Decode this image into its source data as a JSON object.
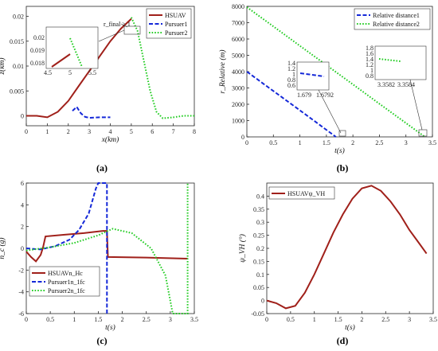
{
  "colors": {
    "hsuav": "#a0201a",
    "p1": "#1428d8",
    "p2": "#22cc22",
    "ax": "#262626"
  },
  "panels": [
    {
      "caption": "(a)",
      "xlabel": "x(km)",
      "ylabel": "z(km)",
      "legend": [
        "HSUAV",
        "Pursuer1",
        "Pursuer2"
      ],
      "annotation": "r_final > 1",
      "xticks": [
        "0",
        "1",
        "2",
        "3",
        "4",
        "5",
        "6",
        "7",
        "8"
      ],
      "yticks": [
        "0",
        "0.005",
        "0.01",
        "0.015",
        "0.02"
      ],
      "inset_xticks": [
        "4.5",
        "5",
        "5.5"
      ],
      "inset_yticks": [
        "0.018",
        "0.019",
        "0.02"
      ]
    },
    {
      "caption": "(b)",
      "xlabel": "t(s)",
      "ylabel": "r_Relative (m)",
      "legend": [
        "Relative distance1",
        "Relative distance2"
      ],
      "xticks": [
        "0",
        "0.5",
        "1",
        "1.5",
        "2",
        "2.5",
        "3",
        "3.5"
      ],
      "yticks": [
        "0",
        "1000",
        "2000",
        "3000",
        "4000",
        "5000",
        "6000",
        "7000",
        "8000"
      ],
      "inset1_xticks": [
        "1.679",
        "1.6792"
      ],
      "inset1_yticks": [
        "0.6",
        "0.8",
        "1",
        "1.2",
        "1.4"
      ],
      "inset2_xticks": [
        "3.3582",
        "3.3584"
      ],
      "inset2_yticks": [
        "0.8",
        "1",
        "1.2",
        "1.4",
        "1.6",
        "1.8"
      ]
    },
    {
      "caption": "(c)",
      "xlabel": "t(s)",
      "ylabel": "n_c (g)",
      "legend": [
        "HSUAVn_Hc",
        "Pursuer1n_1fc",
        "Pursuer2n_1fc"
      ],
      "xticks": [
        "0",
        "0.5",
        "1",
        "1.5",
        "2",
        "2.5",
        "3",
        "3.5"
      ],
      "yticks": [
        "-6",
        "-4",
        "-2",
        "0",
        "2",
        "4",
        "6"
      ]
    },
    {
      "caption": "(d)",
      "xlabel": "t(s)",
      "ylabel": "ψ_VH (°)",
      "legend": [
        "HSUAVψ_VH"
      ],
      "xticks": [
        "0",
        "0.5",
        "1",
        "1.5",
        "2",
        "2.5",
        "3",
        "3.5"
      ],
      "yticks": [
        "-0.05",
        "0",
        "0.05",
        "0.1",
        "0.15",
        "0.2",
        "0.25",
        "0.3",
        "0.35",
        "0.4"
      ]
    }
  ],
  "chart_data": [
    {
      "type": "line",
      "title": "",
      "xlabel": "x(km)",
      "ylabel": "z(km)",
      "xlim": [
        0,
        8
      ],
      "ylim": [
        -0.002,
        0.022
      ],
      "series": [
        {
          "name": "HSUAV",
          "x": [
            0,
            0.5,
            1,
            1.5,
            2,
            2.5,
            3,
            3.5,
            4,
            4.5,
            5
          ],
          "y": [
            0,
            0,
            -0.0003,
            0.0008,
            0.003,
            0.006,
            0.009,
            0.012,
            0.015,
            0.0175,
            0.0195
          ]
        },
        {
          "name": "Pursuer1",
          "x": [
            2.2,
            2.4,
            2.6,
            2.8,
            3,
            3.5,
            4
          ],
          "y": [
            0.001,
            0.0018,
            0.0005,
            -0.0002,
            -0.0004,
            -0.0003,
            -0.0003
          ]
        },
        {
          "name": "Pursuer2",
          "x": [
            5,
            5.3,
            5.6,
            5.9,
            6.2,
            6.5,
            7,
            7.5,
            8
          ],
          "y": [
            0.0198,
            0.017,
            0.011,
            0.005,
            0.0008,
            -0.0005,
            -0.0003,
            0,
            0
          ]
        }
      ]
    },
    {
      "type": "line",
      "title": "",
      "xlabel": "t(s)",
      "ylabel": "r_Relative (m)",
      "xlim": [
        0,
        3.5
      ],
      "ylim": [
        0,
        8000
      ],
      "series": [
        {
          "name": "Relative distance1",
          "x": [
            0,
            0.4,
            0.8,
            1.2,
            1.679
          ],
          "y": [
            4000,
            3050,
            2100,
            1150,
            0
          ]
        },
        {
          "name": "Relative distance2",
          "x": [
            0,
            0.5,
            1,
            1.5,
            2,
            2.5,
            3,
            3.3584
          ],
          "y": [
            7950,
            6770,
            5580,
            4400,
            3220,
            2030,
            850,
            0
          ]
        }
      ]
    },
    {
      "type": "line",
      "title": "",
      "xlabel": "t(s)",
      "ylabel": "n_c (g)",
      "xlim": [
        0,
        3.5
      ],
      "ylim": [
        -6,
        6
      ],
      "series": [
        {
          "name": "HSUAVn_Hc",
          "x": [
            0,
            0.1,
            0.2,
            0.3,
            0.35,
            0.4,
            0.8,
            1.2,
            1.6,
            1.68,
            1.7,
            2.5,
            3.36
          ],
          "y": [
            -0.3,
            -0.8,
            -1.2,
            -0.6,
            0.1,
            1.1,
            1.25,
            1.4,
            1.6,
            1.6,
            -0.8,
            -0.85,
            -0.95
          ]
        },
        {
          "name": "Pursuer1n_1fc",
          "x": [
            0,
            0.3,
            0.6,
            0.9,
            1.1,
            1.3,
            1.45,
            1.5,
            1.68,
            1.68
          ],
          "y": [
            0,
            -0.1,
            0.2,
            0.8,
            1.7,
            3.2,
            5.5,
            6,
            6,
            -6
          ]
        },
        {
          "name": "Pursuer2n_1fc",
          "x": [
            0,
            0.5,
            1,
            1.5,
            1.8,
            2.2,
            2.6,
            2.9,
            3.05,
            3.36,
            3.36
          ],
          "y": [
            -0.2,
            0.1,
            0.5,
            1.2,
            1.8,
            1.4,
            0,
            -2.5,
            -6,
            -6,
            6
          ]
        }
      ]
    },
    {
      "type": "line",
      "title": "",
      "xlabel": "t(s)",
      "ylabel": "ψ_VH (°)",
      "xlim": [
        0,
        3.5
      ],
      "ylim": [
        -0.05,
        0.45
      ],
      "series": [
        {
          "name": "HSUAVψ_VH",
          "x": [
            0,
            0.2,
            0.4,
            0.6,
            0.8,
            1,
            1.2,
            1.4,
            1.6,
            1.8,
            2,
            2.2,
            2.4,
            2.6,
            2.8,
            3,
            3.2,
            3.36
          ],
          "y": [
            0,
            -0.01,
            -0.03,
            -0.02,
            0.03,
            0.1,
            0.18,
            0.26,
            0.33,
            0.39,
            0.43,
            0.44,
            0.42,
            0.38,
            0.33,
            0.27,
            0.22,
            0.18
          ]
        }
      ]
    }
  ]
}
